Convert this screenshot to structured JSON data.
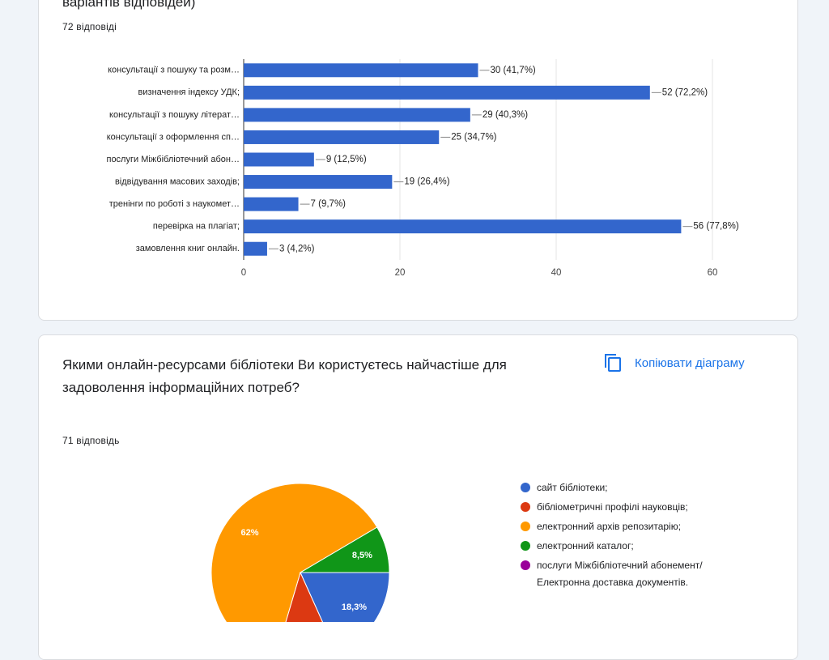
{
  "cards": [
    {
      "title": "варіантів відповідей)",
      "responses": "72 відповіді"
    },
    {
      "title": "Якими онлайн-ресурсами бібліотеки Ви користуєтесь найчастіше для\nзадоволення інформаційних потреб?",
      "responses": "71 відповідь",
      "copy_button": "Копіювати діаграму"
    }
  ],
  "chart_data": [
    {
      "type": "hbar",
      "categories": [
        "консультації з пошуку та розм…",
        "визначення індексу УДК;",
        "консультації з пошуку літерат…",
        "консультації з оформлення сп…",
        "послуги Міжбібліотечний абон…",
        "відвідування масових заходів;",
        "тренінги по роботі з наукомет…",
        "перевірка на плагіат;",
        "замовлення книг онлайн."
      ],
      "values": [
        30,
        52,
        29,
        25,
        9,
        19,
        7,
        56,
        3
      ],
      "value_labels": [
        "30 (41,7%)",
        "52 (72,2%)",
        "29 (40,3%)",
        "25 (34,7%)",
        "9 (12,5%)",
        "19 (26,4%)",
        "7 (9,7%)",
        "56 (77,8%)",
        "3 (4,2%)"
      ],
      "color": "#3366cc",
      "xlim": [
        0,
        60
      ],
      "xticks": [
        0,
        20,
        40,
        60
      ],
      "grid": true
    },
    {
      "type": "pie",
      "series": [
        {
          "name": "сайт бібліотеки;",
          "color": "#3366cc",
          "value": 18.3,
          "value_label": "18,3%"
        },
        {
          "name": "бібліометричні профілі науковців;",
          "color": "#dc3912",
          "value": 11.3
        },
        {
          "name": "електронний архів репозитарію;",
          "color": "#ff9900",
          "value": 62,
          "value_label": "62%"
        },
        {
          "name": "електронний каталог;",
          "color": "#109618",
          "value": 8.5,
          "value_label": "8,5%"
        },
        {
          "name": "послуги Міжбібліотечний абонемент/ Електронна доставка документів.",
          "color": "#990099",
          "value": 0
        }
      ]
    }
  ]
}
